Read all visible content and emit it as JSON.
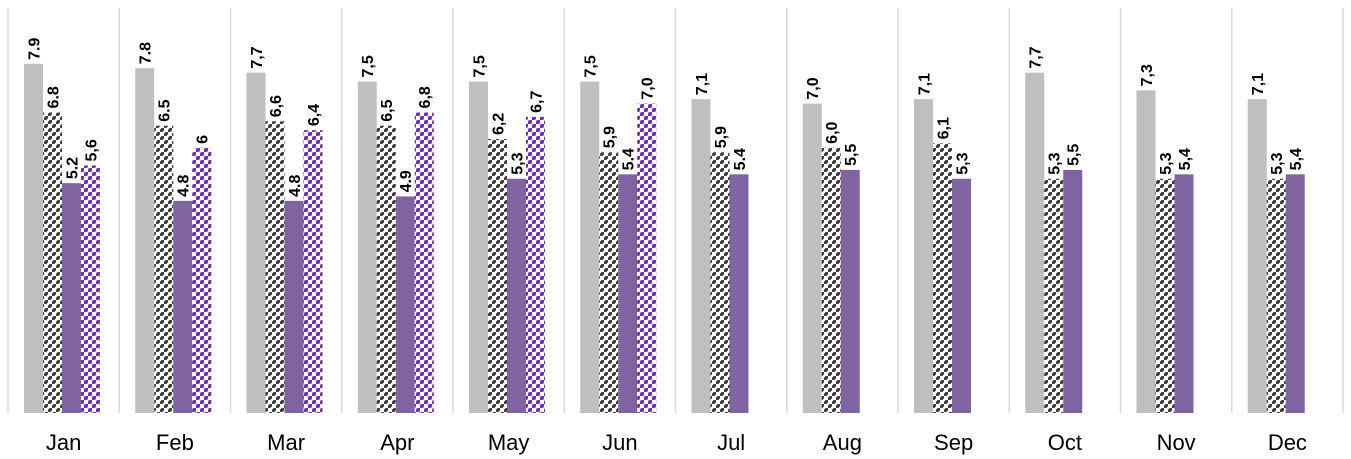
{
  "chart_data": {
    "type": "bar",
    "title": "",
    "xlabel": "",
    "ylabel": "",
    "ylim": [
      0,
      8.1
    ],
    "grid": false,
    "legend": "none",
    "categories": [
      "Jan",
      "Feb",
      "Mar",
      "Apr",
      "May",
      "Jun",
      "Jul",
      "Aug",
      "Sep",
      "Oct",
      "Nov",
      "Dec"
    ],
    "series": [
      {
        "style": "solid-gray",
        "color": "#bfbfbf",
        "values": [
          7.9,
          7.8,
          7.7,
          7.5,
          7.5,
          7.5,
          7.1,
          7.0,
          7.1,
          7.7,
          7.3,
          7.1
        ],
        "labels": [
          "7.9",
          "7.8",
          "7,7",
          "7,5",
          "7,5",
          "7,5",
          "7,1",
          "7,0",
          "7,1",
          "7,7",
          "7,3",
          "7,1"
        ]
      },
      {
        "style": "checker-pattern",
        "color": "#404040",
        "values": [
          6.8,
          6.5,
          6.6,
          6.5,
          6.2,
          5.9,
          5.9,
          6.0,
          6.1,
          5.3,
          5.3,
          5.3
        ],
        "labels": [
          "6.8",
          "6.5",
          "6,6",
          "6,5",
          "6,2",
          "5,9",
          "5,9",
          "6,0",
          "6,1",
          "5,3",
          "5,3",
          "5,3"
        ]
      },
      {
        "style": "solid-purple",
        "color": "#8064a2",
        "values": [
          5.2,
          4.8,
          4.8,
          4.9,
          5.3,
          5.4,
          5.4,
          5.5,
          5.3,
          5.5,
          5.4,
          5.4
        ],
        "labels": [
          "5.2",
          "4.8",
          "4.8",
          "4.9",
          "5,3",
          "5.4",
          "5.4",
          "5,5",
          "5,3",
          "5,5",
          "5,4",
          "5,4"
        ]
      },
      {
        "style": "purple-pattern",
        "color": "#7030a0",
        "values": [
          5.6,
          6.0,
          6.4,
          6.8,
          6.7,
          7.0,
          null,
          null,
          null,
          null,
          null,
          null
        ],
        "labels": [
          "5,6",
          "6",
          "6,4",
          "6,8",
          "6,7",
          "7,0",
          null,
          null,
          null,
          null,
          null,
          null
        ]
      }
    ]
  }
}
